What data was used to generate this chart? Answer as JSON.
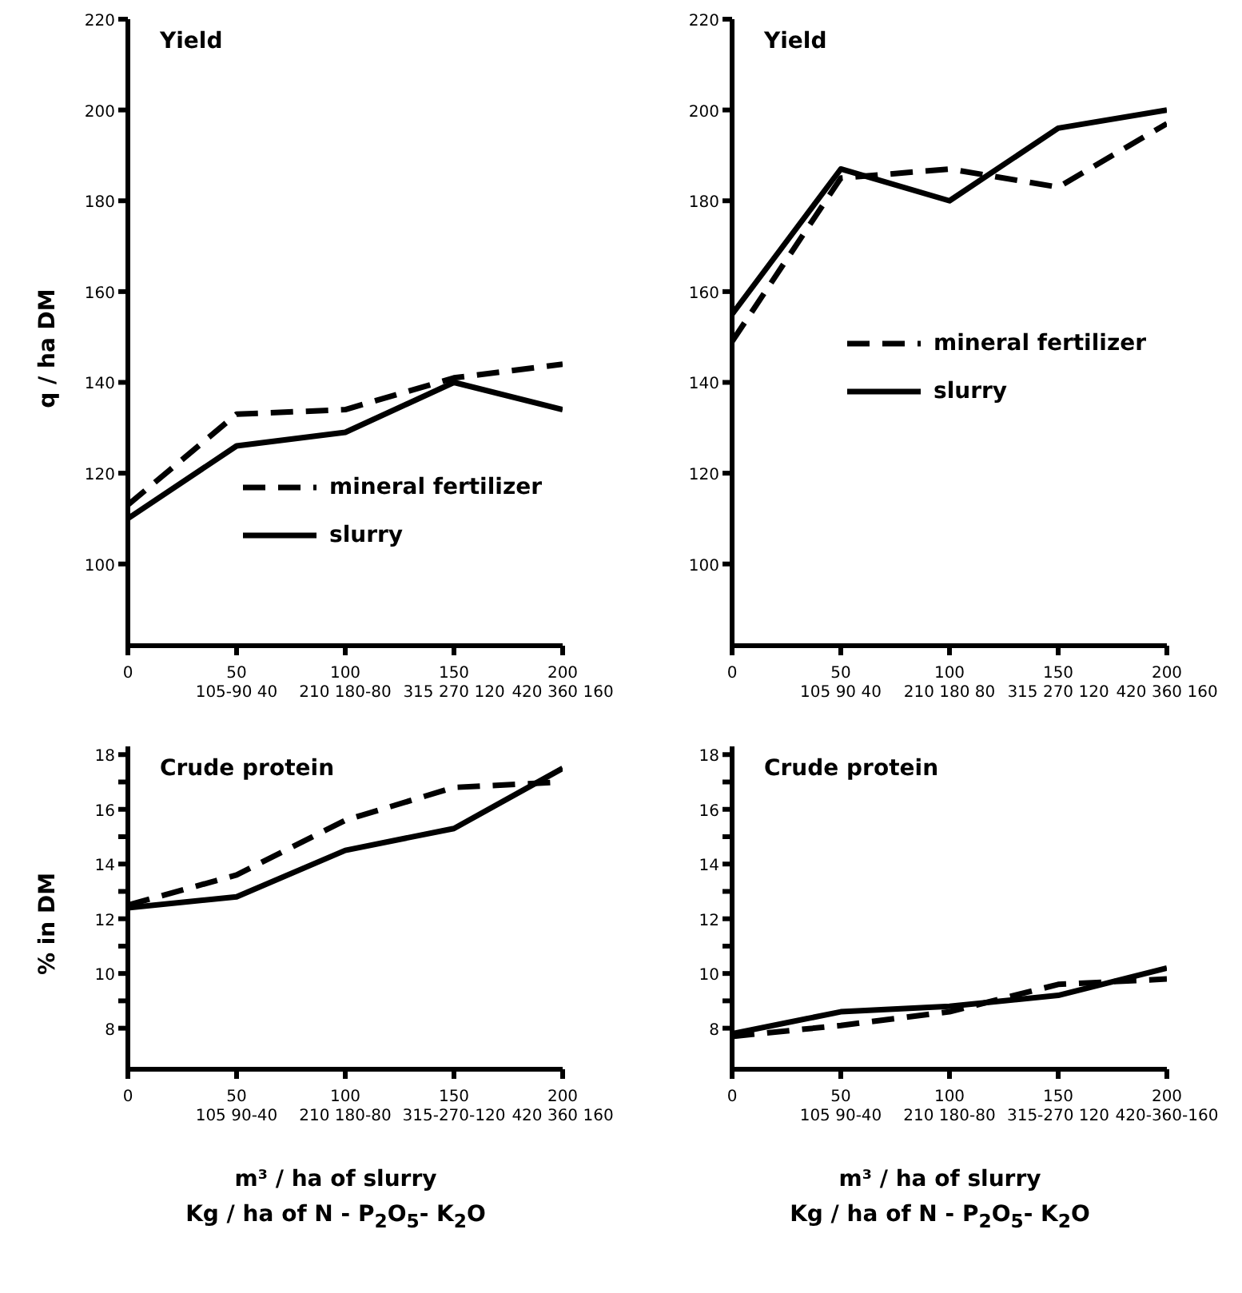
{
  "chart_data": [
    {
      "type": "line",
      "title": "Yield",
      "ylabel": "q / ha DM",
      "x": [
        0,
        50,
        100,
        150,
        200
      ],
      "xlim": [
        0,
        200
      ],
      "xticks": [
        0,
        50,
        100,
        150,
        200
      ],
      "ylim": [
        82,
        220
      ],
      "yticks": [
        100,
        120,
        140,
        160,
        180,
        200,
        220
      ],
      "legend": "bottom right",
      "annotations": [
        "105-90 40",
        "210 180-80",
        "315 270 120",
        "420 360 160"
      ],
      "series": [
        {
          "name": "mineral fertilizer",
          "color": "#000000",
          "line_style": "dashed",
          "values": [
            113,
            133,
            134,
            141,
            144
          ]
        },
        {
          "name": "slurry",
          "color": "#000000",
          "line_style": "solid",
          "values": [
            110,
            126,
            129,
            140,
            134
          ]
        }
      ]
    },
    {
      "type": "line",
      "title": "Yield",
      "x": [
        0,
        50,
        100,
        150,
        200
      ],
      "xlim": [
        0,
        200
      ],
      "xticks": [
        0,
        50,
        100,
        150,
        200
      ],
      "ylim": [
        82,
        220
      ],
      "yticks": [
        100,
        120,
        140,
        160,
        180,
        200,
        220
      ],
      "legend": "right",
      "annotations": [
        "105 90 40",
        "210 180 80",
        "315 270 120",
        "420 360 160"
      ],
      "series": [
        {
          "name": "mineral fertilizer",
          "color": "#000000",
          "line_style": "dashed",
          "values": [
            149,
            185,
            187,
            183,
            197
          ]
        },
        {
          "name": "slurry",
          "color": "#000000",
          "line_style": "solid",
          "values": [
            155,
            187,
            180,
            196,
            200
          ]
        }
      ]
    },
    {
      "type": "line",
      "title": "Crude protein",
      "ylabel": "% in DM",
      "xlabel": "m³ / ha of slurry\nKg / ha of N - P$_{2}$O$_{5}$- K$_{2}$O",
      "x": [
        0,
        50,
        100,
        150,
        200
      ],
      "xlim": [
        0,
        200
      ],
      "xticks": [
        0,
        50,
        100,
        150,
        200
      ],
      "ylim": [
        6.5,
        18.3
      ],
      "yticks": [
        8,
        {
          "value": 9,
          "label": null
        },
        10,
        {
          "value": 11,
          "label": null
        },
        12,
        {
          "value": 13,
          "label": null
        },
        14,
        {
          "value": 15,
          "label": null
        },
        16,
        {
          "value": 17,
          "label": null
        },
        18
      ],
      "annotations": [
        "105 90-40",
        "210 180-80",
        "315-270-120",
        "420 360 160"
      ],
      "series": [
        {
          "color": "#000000",
          "line_style": "dashed",
          "values": [
            12.5,
            13.6,
            15.6,
            16.8,
            17.0
          ]
        },
        {
          "color": "#000000",
          "line_style": "solid",
          "values": [
            12.4,
            12.8,
            14.5,
            15.3,
            17.5
          ]
        }
      ]
    },
    {
      "type": "line",
      "title": "Crude protein",
      "xlabel": "m³ / ha of slurry\nKg / ha of N - P$_{2}$O$_{5}$- K$_{2}$O",
      "x": [
        0,
        50,
        100,
        150,
        200
      ],
      "xlim": [
        0,
        200
      ],
      "xticks": [
        0,
        50,
        100,
        150,
        200
      ],
      "ylim": [
        6.5,
        18.3
      ],
      "yticks": [
        8,
        {
          "value": 9,
          "label": null
        },
        10,
        {
          "value": 11,
          "label": null
        },
        12,
        {
          "value": 13,
          "label": null
        },
        14,
        {
          "value": 15,
          "label": null
        },
        16,
        {
          "value": 17,
          "label": null
        },
        18
      ],
      "annotations": [
        "105 90-40",
        "210 180-80",
        "315-270 120",
        "420-360-160"
      ],
      "series": [
        {
          "color": "#000000",
          "line_style": "dashed",
          "values": [
            7.7,
            8.1,
            8.6,
            9.6,
            9.8
          ]
        },
        {
          "color": "#000000",
          "line_style": "solid",
          "values": [
            7.8,
            8.6,
            8.8,
            9.2,
            10.2
          ]
        }
      ]
    }
  ]
}
